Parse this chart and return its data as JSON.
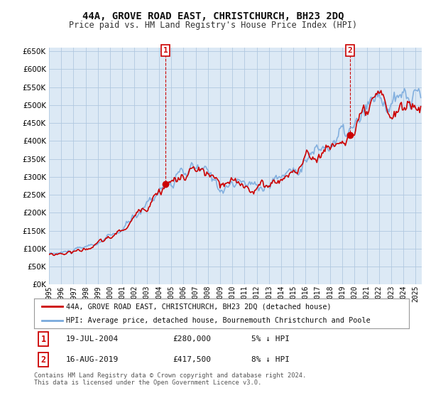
{
  "title": "44A, GROVE ROAD EAST, CHRISTCHURCH, BH23 2DQ",
  "subtitle": "Price paid vs. HM Land Registry's House Price Index (HPI)",
  "background_color": "#ffffff",
  "plot_bg_color": "#dce9f5",
  "grid_color": "#b0c8e0",
  "hpi_color": "#7aaadd",
  "price_color": "#cc0000",
  "legend_label_price": "44A, GROVE ROAD EAST, CHRISTCHURCH, BH23 2DQ (detached house)",
  "legend_label_hpi": "HPI: Average price, detached house, Bournemouth Christchurch and Poole",
  "transaction1_date": "19-JUL-2004",
  "transaction1_price": "£280,000",
  "transaction1_hpi": "5% ↓ HPI",
  "transaction2_date": "16-AUG-2019",
  "transaction2_price": "£417,500",
  "transaction2_hpi": "8% ↓ HPI",
  "footnote": "Contains HM Land Registry data © Crown copyright and database right 2024.\nThis data is licensed under the Open Government Licence v3.0.",
  "ylim": [
    0,
    660000
  ],
  "yticks": [
    0,
    50000,
    100000,
    150000,
    200000,
    250000,
    300000,
    350000,
    400000,
    450000,
    500000,
    550000,
    600000,
    650000
  ],
  "xlim_start": 1995.0,
  "xlim_end": 2025.5,
  "marker1_year": 2004.54,
  "marker1_val": 280000,
  "marker2_year": 2019.62,
  "marker2_val": 417500
}
